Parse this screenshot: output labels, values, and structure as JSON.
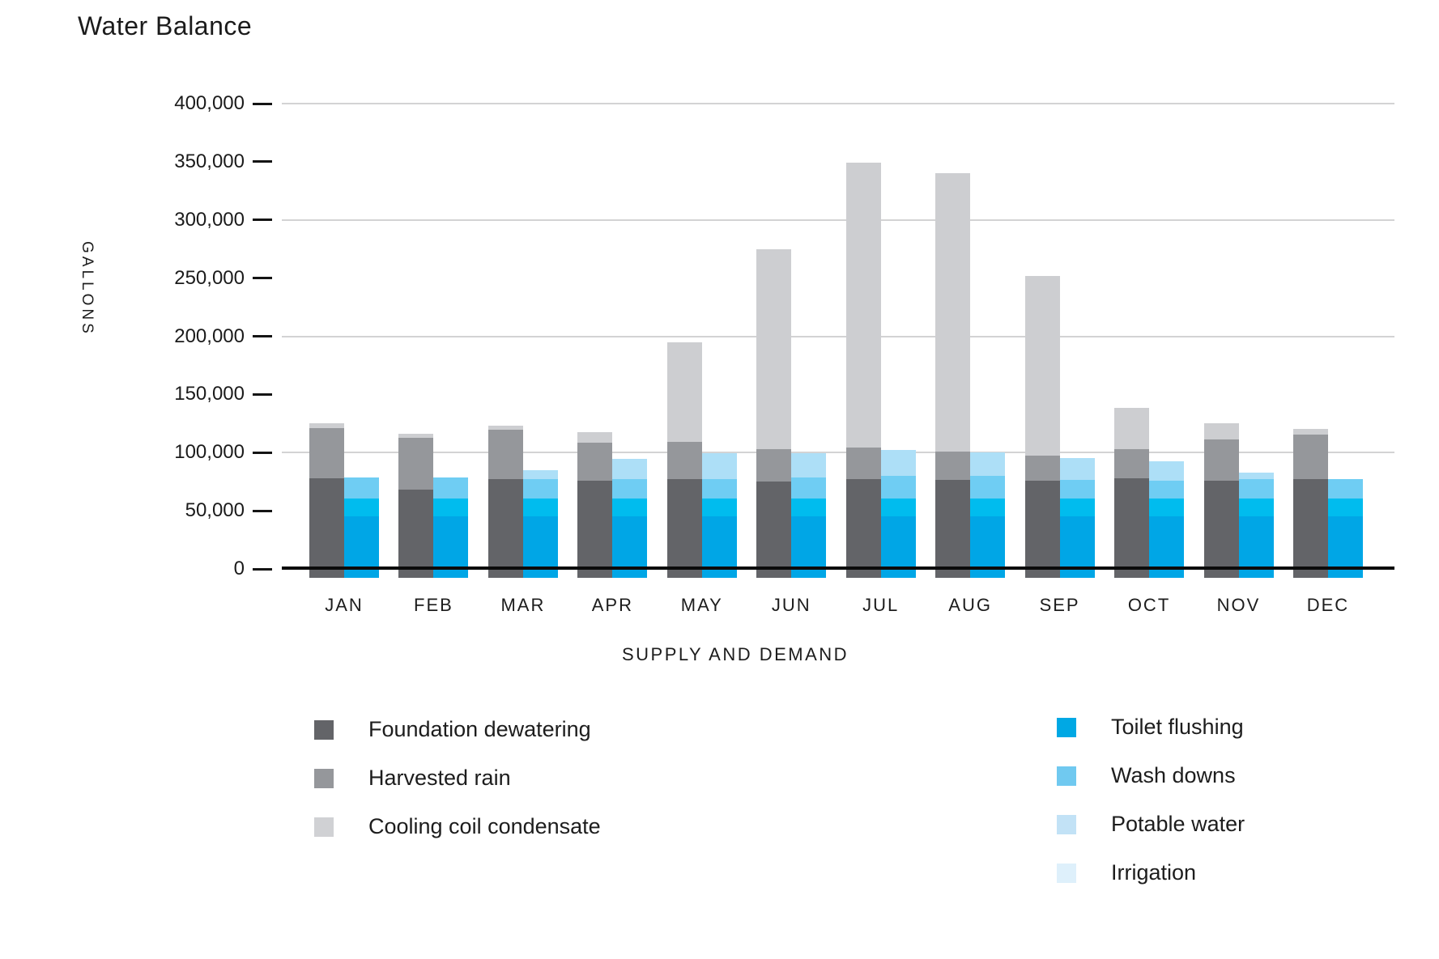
{
  "chart_data": {
    "type": "bar",
    "title": "Water Balance",
    "ylabel": "GALLONS",
    "xlabel": "SUPPLY AND DEMAND",
    "categories": [
      "JAN",
      "FEB",
      "MAR",
      "APR",
      "MAY",
      "JUN",
      "JUL",
      "AUG",
      "SEP",
      "OCT",
      "NOV",
      "DEC"
    ],
    "y_axis": {
      "min": 0,
      "max": 400000,
      "tick_step": 50000,
      "gridline_step": 100000,
      "tick_labels": [
        "0",
        "50,000",
        "100,000",
        "150,000",
        "200,000",
        "250,000",
        "300,000",
        "350,000",
        "400,000"
      ]
    },
    "grid": "horizontal-only",
    "legend_position": "bottom-two-columns",
    "colors": {
      "gridline": "#d3d3d4",
      "axis": "#0b0b0b",
      "text": "#1c1c1c"
    },
    "groups": [
      {
        "name": "Supply",
        "series": [
          {
            "name": "Foundation dewatering",
            "legend_color": "#636468",
            "bar_color": "#636468",
            "values": [
              78000,
              68000,
              77000,
              75500,
              77500,
              75000,
              77500,
              76500,
              75500,
              78000,
              75500,
              77000
            ]
          },
          {
            "name": "Harvested rain",
            "legend_color": "#95979b",
            "bar_color": "#95979b",
            "values": [
              43000,
              45000,
              42500,
              33000,
              31500,
              28000,
              27000,
              24500,
              22000,
              25000,
              35500,
              38500
            ]
          },
          {
            "name": "Cooling coil condensate",
            "legend_color": "#d0d1d4",
            "bar_color": "#cdced1",
            "values": [
              4000,
              3500,
              3500,
              9000,
              86000,
              171500,
              244500,
              239000,
              154500,
              35500,
              14000,
              5000
            ]
          }
        ]
      },
      {
        "name": "Demand",
        "series": [
          {
            "name": "Toilet flushing",
            "legend_color": "#00a8e4",
            "bar_color": "#00a6e6",
            "values": [
              45500,
              45500,
              45500,
              45500,
              45500,
              45500,
              45500,
              45500,
              45500,
              45500,
              45500,
              45500
            ]
          },
          {
            "name": "Wash downs",
            "legend_color": "#70c9f0",
            "bar_color": "#00bcee",
            "values": [
              15000,
              15000,
              15000,
              15000,
              15000,
              15000,
              15000,
              15000,
              15000,
              15000,
              15000,
              15000
            ]
          },
          {
            "name": "Potable water",
            "legend_color": "#c2e2f6",
            "bar_color": "#6fcdf3",
            "values": [
              18000,
              18000,
              16500,
              16500,
              17000,
              18000,
              19500,
              19500,
              16000,
              15500,
              16500,
              17000
            ]
          },
          {
            "name": "Irrigation",
            "legend_color": "#def0fb",
            "bar_color": "#addff7",
            "values": [
              0,
              0,
              8000,
              17500,
              22000,
              21000,
              22500,
              20000,
              18500,
              16500,
              5500,
              0
            ]
          }
        ]
      }
    ]
  }
}
